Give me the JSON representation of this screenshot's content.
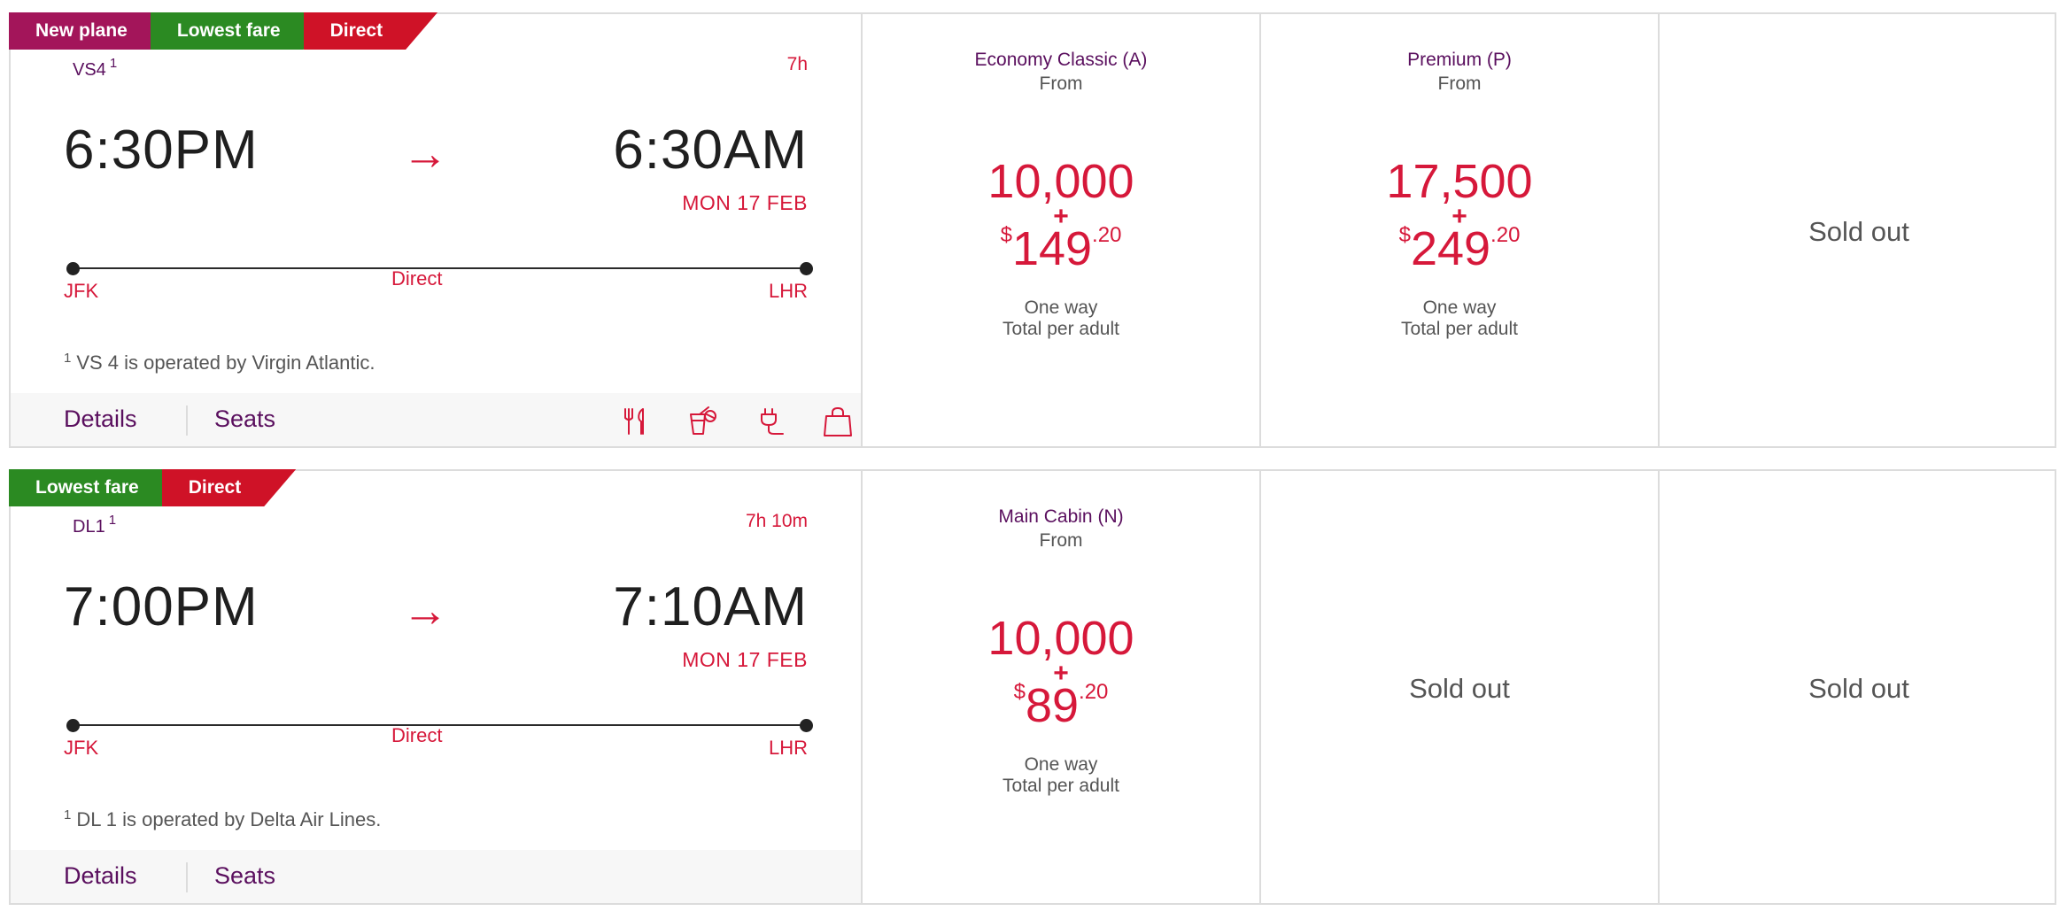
{
  "colors": {
    "accent_red": "#d6183a",
    "brand_purple": "#5a0f5e",
    "badge_new_plane": "#a3155a",
    "badge_lowest_fare": "#2b8a22",
    "badge_direct": "#cf1227"
  },
  "flights": [
    {
      "badges": [
        {
          "label": "New plane",
          "color": "#a3155a"
        },
        {
          "label": "Lowest fare",
          "color": "#2b8a22"
        },
        {
          "label": "Direct",
          "color": "#cf1227"
        }
      ],
      "flight_number": "VS4",
      "footnote_marker": "1",
      "duration": "7h",
      "depart_time": "6:30PM",
      "arrival_time": "6:30AM",
      "arrival_date": "MON 17 FEB",
      "origin": "JFK",
      "destination": "LHR",
      "stops": "Direct",
      "operated_by": "VS 4 is operated by Virgin Atlantic.",
      "details_label": "Details",
      "seats_label": "Seats",
      "amenities": [
        "meal-icon",
        "drinks-icon",
        "power-outlet-icon",
        "baggage-icon"
      ],
      "fares": [
        {
          "cabin": "Economy Classic (A)",
          "from": "From",
          "points": "10,000",
          "plus": "+",
          "currency": "$",
          "amount": "149",
          "cents": ".20",
          "one_way": "One way",
          "per_adult": "Total per adult"
        },
        {
          "cabin": "Premium (P)",
          "from": "From",
          "points": "17,500",
          "plus": "+",
          "currency": "$",
          "amount": "249",
          "cents": ".20",
          "one_way": "One way",
          "per_adult": "Total per adult"
        },
        {
          "sold_out": "Sold out"
        }
      ]
    },
    {
      "badges": [
        {
          "label": "Lowest fare",
          "color": "#2b8a22"
        },
        {
          "label": "Direct",
          "color": "#cf1227"
        }
      ],
      "flight_number": "DL1",
      "footnote_marker": "1",
      "duration": "7h 10m",
      "depart_time": "7:00PM",
      "arrival_time": "7:10AM",
      "arrival_date": "MON 17 FEB",
      "origin": "JFK",
      "destination": "LHR",
      "stops": "Direct",
      "operated_by": "DL 1 is operated by Delta Air Lines.",
      "details_label": "Details",
      "seats_label": "Seats",
      "amenities": [],
      "fares": [
        {
          "cabin": "Main Cabin (N)",
          "from": "From",
          "points": "10,000",
          "plus": "+",
          "currency": "$",
          "amount": "89",
          "cents": ".20",
          "one_way": "One way",
          "per_adult": "Total per adult"
        },
        {
          "sold_out": "Sold out"
        },
        {
          "sold_out": "Sold out"
        }
      ]
    }
  ]
}
